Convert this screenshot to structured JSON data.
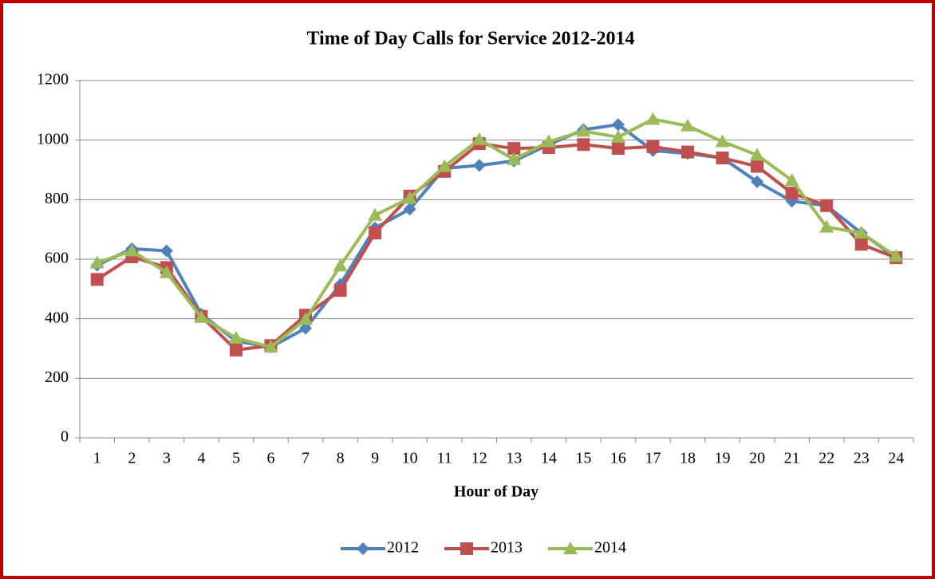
{
  "chart_data": {
    "type": "line",
    "title": "Time of Day Calls for Service 2012-2014",
    "xlabel": "Hour of Day",
    "categories": [
      "1",
      "2",
      "3",
      "4",
      "5",
      "6",
      "7",
      "8",
      "9",
      "10",
      "11",
      "12",
      "13",
      "14",
      "15",
      "16",
      "17",
      "18",
      "19",
      "20",
      "21",
      "22",
      "23",
      "24"
    ],
    "series": [
      {
        "name": "2012",
        "color": "#4f81bd",
        "marker": "diamond",
        "values": [
          580,
          635,
          628,
          415,
          325,
          305,
          368,
          515,
          705,
          768,
          905,
          915,
          930,
          985,
          1035,
          1052,
          965,
          955,
          940,
          860,
          795,
          780,
          688,
          605
        ]
      },
      {
        "name": "2013",
        "color": "#c0504d",
        "marker": "square",
        "values": [
          532,
          608,
          572,
          408,
          295,
          310,
          412,
          495,
          688,
          812,
          895,
          988,
          972,
          975,
          985,
          972,
          978,
          960,
          940,
          912,
          822,
          780,
          650,
          605
        ]
      },
      {
        "name": "2014",
        "color": "#9bbb59",
        "marker": "triangle",
        "values": [
          588,
          628,
          555,
          405,
          335,
          305,
          398,
          578,
          748,
          805,
          912,
          1002,
          935,
          995,
          1030,
          1010,
          1070,
          1048,
          995,
          950,
          865,
          708,
          688,
          610
        ]
      }
    ],
    "ylim": [
      0,
      1200
    ],
    "yticks": [
      0,
      200,
      400,
      600,
      800,
      1000,
      1200
    ],
    "grid": true,
    "legend": "bottom"
  }
}
